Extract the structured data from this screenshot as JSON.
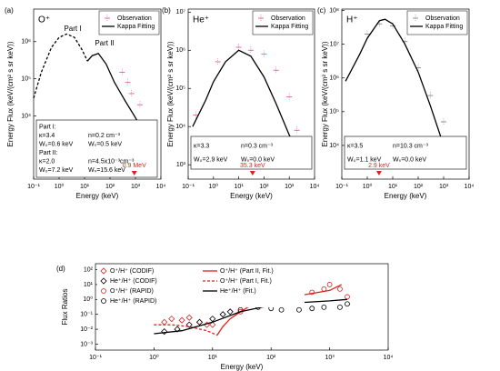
{
  "chart_data": [
    {
      "type": "line",
      "panel_label": "(a)",
      "species": "O⁺",
      "xlabel": "Energy (keV)",
      "ylabel": "Energy Flux (keV/(cm² s sr keV))",
      "log_x": true,
      "log_y": true,
      "xlim": [
        0.1,
        10000
      ],
      "ylim": [
        200,
        7500000
      ],
      "xticks": [
        {
          "value": 0.1,
          "label": "10⁻¹"
        },
        {
          "value": 1,
          "label": "10⁰"
        },
        {
          "value": 10,
          "label": "10¹"
        },
        {
          "value": 100,
          "label": "10²"
        },
        {
          "value": 1000,
          "label": "10³"
        },
        {
          "value": 10000,
          "label": "10⁴"
        }
      ],
      "yticks": [
        {
          "value": 10000,
          "label": "10⁴"
        },
        {
          "value": 100000,
          "label": "10⁵"
        },
        {
          "value": 1000000,
          "label": "10⁶"
        }
      ],
      "series": [
        {
          "name": "Observation",
          "color": "#e0609a",
          "style": "markers",
          "marker": "dash",
          "x": [
            300,
            500,
            700,
            1500
          ],
          "values": [
            150000,
            80000,
            40000,
            20000
          ]
        },
        {
          "name": "Kappa Fitting",
          "color": "#000000",
          "style": "solid",
          "x": [
            13,
            20,
            35,
            70,
            150,
            400,
            1000,
            1600
          ],
          "values": [
            300000,
            420000,
            480000,
            250000,
            80000,
            25000,
            9000,
            5000
          ]
        },
        {
          "color": "#000000",
          "style": "dashed",
          "x": [
            0.1,
            0.2,
            0.5,
            1,
            2,
            4,
            8,
            13
          ],
          "values": [
            30000,
            150000,
            700000,
            1300000,
            1600000,
            1300000,
            600000,
            300000
          ]
        }
      ],
      "annotations": [
        "Part I",
        "Part II"
      ],
      "params": [
        [
          "Part I:"
        ],
        [
          "κ=3.4",
          "n=0.2 cm⁻³"
        ],
        [
          "W₀=0.6 keV",
          "Wₛ=0.5 keV"
        ],
        [
          "Part II:"
        ],
        [
          "κ=2.0",
          "n=4.5x10⁻³cm⁻³"
        ],
        [
          "W₀=7.2 keV",
          "Wₛ=15.6 keV"
        ]
      ],
      "marker": {
        "x": 900,
        "label": "0.9 MeV",
        "color": "#e02020"
      }
    },
    {
      "type": "line",
      "panel_label": "(b)",
      "species": "He⁺",
      "xlabel": "Energy (keV)",
      "ylabel": "Energy Flux (keV/(cm² s sr keV))",
      "log_x": true,
      "log_y": true,
      "xlim": [
        0.1,
        10000
      ],
      "ylim": [
        420,
        12000000
      ],
      "xticks": [
        {
          "value": 0.1,
          "label": "10⁻¹"
        },
        {
          "value": 1,
          "label": "10⁰"
        },
        {
          "value": 10,
          "label": "10¹"
        },
        {
          "value": 100,
          "label": "10²"
        },
        {
          "value": 1000,
          "label": "10³"
        },
        {
          "value": 10000,
          "label": "10⁴"
        }
      ],
      "yticks": [
        {
          "value": 1000,
          "label": "10³"
        },
        {
          "value": 10000,
          "label": "10⁴"
        },
        {
          "value": 100000,
          "label": "10⁵"
        },
        {
          "value": 1000000,
          "label": "10⁶"
        },
        {
          "value": 10000000,
          "label": "10⁷"
        }
      ],
      "series": [
        {
          "name": "Observation",
          "color": "#e0609a",
          "style": "markers",
          "marker": "dash",
          "x": [
            0.2,
            1.5,
            10,
            30,
            100,
            300,
            1000,
            2000
          ],
          "values": [
            20000,
            500000,
            1200000,
            1000000,
            800000,
            300000,
            60000,
            8000
          ]
        },
        {
          "name": "Kappa Fitting",
          "color": "#000000",
          "style": "solid",
          "x": [
            0.15,
            0.5,
            1,
            3,
            10,
            30,
            100,
            300,
            1000,
            3000
          ],
          "values": [
            10000,
            50000,
            150000,
            500000,
            1000000,
            700000,
            200000,
            40000,
            6000,
            1500
          ]
        }
      ],
      "params": [
        [
          "κ=3.3",
          "n=0.3 cm⁻³"
        ],
        [
          "W₀=2.9 keV",
          "Wₛ=0.0 keV"
        ]
      ],
      "marker": {
        "x": 35.3,
        "label": "35.3 keV",
        "color": "#e02020"
      }
    },
    {
      "type": "line",
      "panel_label": "(c)",
      "species": "H⁺",
      "xlabel": "Energy (keV)",
      "ylabel": "Energy Flux (keV/(cm² s sr keV))",
      "log_x": true,
      "log_y": true,
      "xlim": [
        0.1,
        10000
      ],
      "ylim": [
        1000,
        110000000
      ],
      "xticks": [
        {
          "value": 0.1,
          "label": "10⁻¹"
        },
        {
          "value": 1,
          "label": "10⁰"
        },
        {
          "value": 10,
          "label": "10¹"
        },
        {
          "value": 100,
          "label": "10²"
        },
        {
          "value": 1000,
          "label": "10³"
        },
        {
          "value": 10000,
          "label": "10⁴"
        }
      ],
      "yticks": [
        {
          "value": 10000,
          "label": "10⁴"
        },
        {
          "value": 100000,
          "label": "10⁵"
        },
        {
          "value": 1000000,
          "label": "10⁶"
        },
        {
          "value": 10000000,
          "label": "10⁷"
        },
        {
          "value": 100000000,
          "label": "10⁸"
        }
      ],
      "series": [
        {
          "name": "Observation",
          "color": "#888888",
          "style": "markers",
          "marker": "dash",
          "x": [
            1,
            3,
            10,
            30,
            100,
            300,
            1000
          ],
          "values": [
            20000000,
            40000000,
            35000000,
            12000000,
            2000000,
            300000,
            50000
          ]
        },
        {
          "name": "Kappa Fitting",
          "color": "#000000",
          "style": "solid",
          "x": [
            0.14,
            0.5,
            1,
            3,
            5,
            10,
            30,
            100,
            300,
            1000,
            2000
          ],
          "values": [
            800000,
            5000000,
            15000000,
            50000000,
            55000000,
            40000000,
            10000000,
            1500000,
            150000,
            10000,
            2500
          ]
        }
      ],
      "params": [
        [
          "κ=3.5",
          "n=10.3 cm⁻³"
        ],
        [
          "W₀=1.1 keV",
          "Wₛ=0.0 keV"
        ]
      ],
      "marker": {
        "x": 2.9,
        "label": "2.9 keV",
        "color": "#e02020"
      }
    },
    {
      "type": "line",
      "panel_label": "(d)",
      "xlabel": "Energy (keV)",
      "ylabel": "Flux Ratios",
      "log_x": true,
      "log_y": true,
      "xlim": [
        0.1,
        10000
      ],
      "ylim": [
        0.0004,
        250
      ],
      "xticks": [
        {
          "value": 0.1,
          "label": "10⁻¹"
        },
        {
          "value": 1,
          "label": "10⁰"
        },
        {
          "value": 10,
          "label": "10¹"
        },
        {
          "value": 100,
          "label": "10²"
        },
        {
          "value": 1000,
          "label": "10³"
        },
        {
          "value": 10000,
          "label": "10⁴"
        }
      ],
      "yticks": [
        {
          "value": 0.001,
          "label": "10⁻³"
        },
        {
          "value": 0.01,
          "label": "10⁻²"
        },
        {
          "value": 0.1,
          "label": "10⁻¹"
        },
        {
          "value": 1,
          "label": "10⁰"
        },
        {
          "value": 10,
          "label": "10¹"
        },
        {
          "value": 100,
          "label": "10²"
        }
      ],
      "series": [
        {
          "name": "O⁺/H⁺ (CODIF)",
          "color": "#e02020",
          "style": "markers",
          "marker": "diamond",
          "x": [
            1.5,
            2,
            3,
            4,
            6,
            8,
            10
          ],
          "values": [
            0.03,
            0.05,
            0.04,
            0.06,
            0.03,
            0.02,
            0.02
          ]
        },
        {
          "name": "He⁺/H⁺ (CODIF)",
          "color": "#000000",
          "style": "markers",
          "marker": "diamond",
          "x": [
            1.5,
            2.5,
            4,
            6,
            10,
            15,
            20
          ],
          "values": [
            0.007,
            0.01,
            0.02,
            0.03,
            0.05,
            0.1,
            0.15
          ]
        },
        {
          "name": "O⁺/H⁺ (RAPID)",
          "color": "#e02020",
          "style": "markers",
          "marker": "circle",
          "x": [
            30,
            60,
            100,
            200,
            300,
            500,
            800,
            1000,
            1500,
            2000
          ],
          "values": [
            0.15,
            0.5,
            1,
            1.5,
            2,
            3,
            5,
            10,
            5,
            1.5
          ]
        },
        {
          "name": "He⁺/H⁺ (RAPID)",
          "color": "#000000",
          "style": "markers",
          "marker": "circle",
          "x": [
            30,
            60,
            100,
            150,
            300,
            500,
            800,
            1500,
            2000
          ],
          "values": [
            0.2,
            0.3,
            0.25,
            0.2,
            0.2,
            0.25,
            0.3,
            0.3,
            0.5
          ]
        },
        {
          "name": "O⁺/H⁺ (Part II, Fit.)",
          "color": "#e02020",
          "style": "solid",
          "x": [
            12,
            15,
            20,
            30,
            50,
            100,
            300,
            1000,
            1600
          ],
          "values": [
            0.004,
            0.015,
            0.05,
            0.15,
            0.5,
            1,
            1.8,
            4,
            10
          ]
        },
        {
          "name": "O⁺/H⁺ (Part I, Fit.)",
          "color": "#e02020",
          "style": "dashed",
          "x": [
            1,
            2,
            4,
            8,
            12
          ],
          "values": [
            0.02,
            0.02,
            0.015,
            0.008,
            0.004
          ]
        },
        {
          "name": "He⁺/H⁺ (Fit.)",
          "color": "#000000",
          "style": "solid",
          "x": [
            1,
            3,
            10,
            30,
            100,
            300,
            1000,
            2000
          ],
          "values": [
            0.005,
            0.008,
            0.03,
            0.15,
            0.4,
            0.6,
            0.8,
            1
          ]
        }
      ]
    }
  ]
}
